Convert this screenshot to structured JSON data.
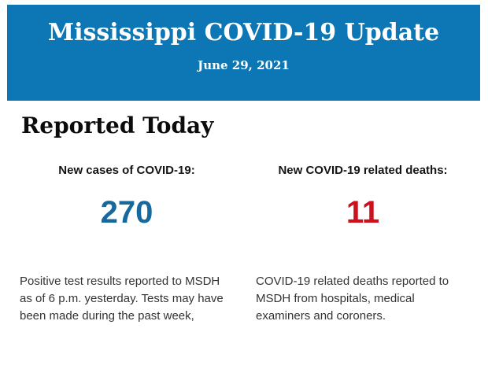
{
  "banner": {
    "title": "Mississippi COVID-19 Update",
    "date": "June 29, 2021",
    "background_color": "#0d76b4",
    "text_color": "#ffffff"
  },
  "main": {
    "heading": "Reported Today",
    "stats": [
      {
        "label": "New cases of COVID-19:",
        "value": "270",
        "value_color": "#17689d",
        "description": "Positive test results reported to MSDH as of 6 p.m. yesterday. Tests may have been made during the past week,"
      },
      {
        "label": "New COVID-19 related deaths:",
        "value": "11",
        "value_color": "#cc101c",
        "description": "COVID-19 related deaths reported to MSDH from hospitals, medical examiners and coroners."
      }
    ]
  }
}
